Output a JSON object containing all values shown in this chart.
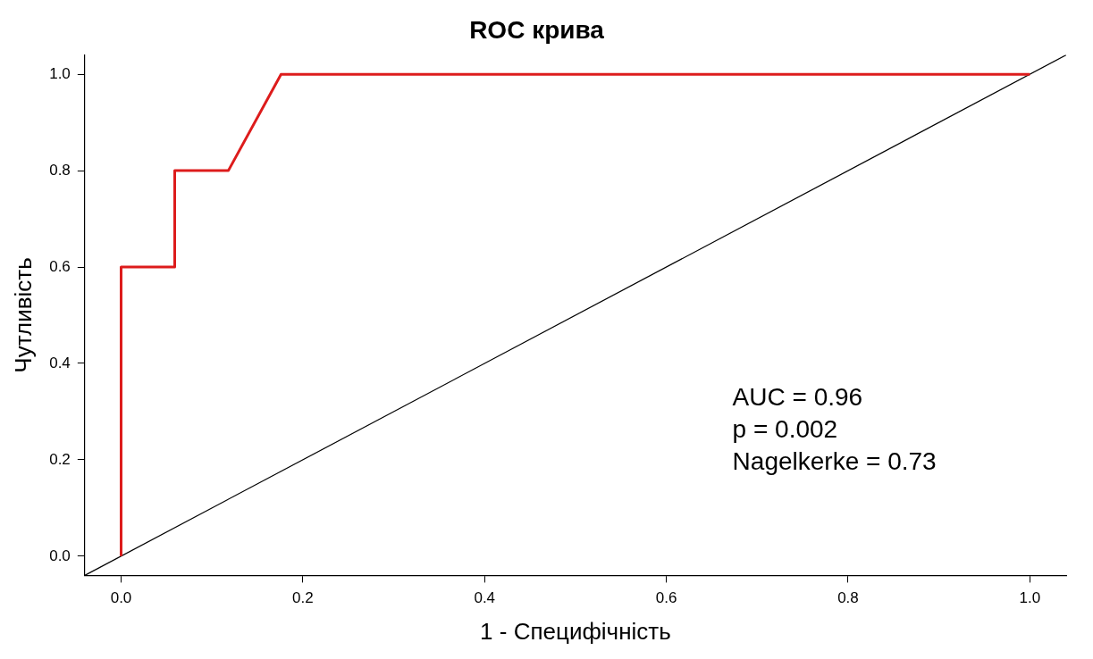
{
  "chart_data": {
    "type": "line",
    "title": "ROC крива",
    "xlabel": "1 - Специфічність",
    "ylabel": "Чутливість",
    "xlim": [
      -0.04,
      1.04
    ],
    "ylim": [
      -0.04,
      1.04
    ],
    "xticks": [
      {
        "value": 0,
        "label": "0.0"
      },
      0.2,
      0.4,
      0.6,
      0.8,
      {
        "value": 1,
        "label": "1.0"
      }
    ],
    "yticks": [
      {
        "value": 0,
        "label": "0.0"
      },
      0.2,
      0.4,
      0.6,
      0.8,
      {
        "value": 1,
        "label": "1.0"
      }
    ],
    "series": [
      {
        "color": "#dd1c1c",
        "x": [
          0,
          0,
          0.059,
          0.059,
          0.118,
          0.176,
          1
        ],
        "values": [
          0,
          0.6,
          0.6,
          0.8,
          0.8,
          1,
          1
        ]
      },
      {
        "color": "#000000",
        "x": [
          -0.04,
          1.04
        ],
        "values": [
          -0.04,
          1.04
        ]
      }
    ],
    "marker": "none",
    "line_style": "solid",
    "annotations": [
      "AUC = 0.96",
      "p = 0.002",
      "Nagelkerke = 0.73"
    ]
  }
}
